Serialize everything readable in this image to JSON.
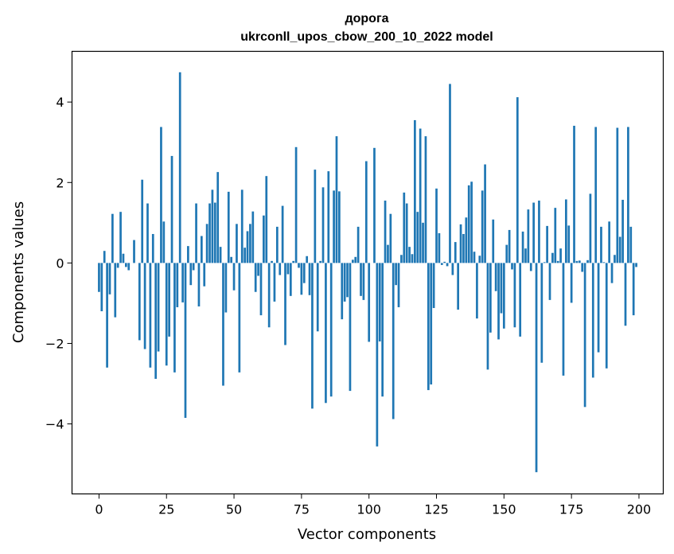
{
  "chart_data": {
    "type": "bar",
    "title": "дорога",
    "subtitle": "ukrconll_upos_cbow_200_10_2022 model",
    "xlabel": "Vector components",
    "ylabel": "Components values",
    "xlim": [
      -10,
      209
    ],
    "ylim": [
      -5.74,
      5.26
    ],
    "xticks": [
      0,
      25,
      50,
      75,
      100,
      125,
      150,
      175,
      200
    ],
    "xtick_labels": [
      "0",
      "25",
      "50",
      "75",
      "100",
      "125",
      "150",
      "175",
      "200"
    ],
    "yticks": [
      -4,
      -2,
      0,
      2,
      4
    ],
    "ytick_labels": [
      "−4",
      "−2",
      "0",
      "2",
      "4"
    ],
    "grid": false,
    "bar_color": "#1f77b4",
    "x": [
      0,
      1,
      2,
      3,
      4,
      5,
      6,
      7,
      8,
      9,
      10,
      11,
      12,
      13,
      14,
      15,
      16,
      17,
      18,
      19,
      20,
      21,
      22,
      23,
      24,
      25,
      26,
      27,
      28,
      29,
      30,
      31,
      32,
      33,
      34,
      35,
      36,
      37,
      38,
      39,
      40,
      41,
      42,
      43,
      44,
      45,
      46,
      47,
      48,
      49,
      50,
      51,
      52,
      53,
      54,
      55,
      56,
      57,
      58,
      59,
      60,
      61,
      62,
      63,
      64,
      65,
      66,
      67,
      68,
      69,
      70,
      71,
      72,
      73,
      74,
      75,
      76,
      77,
      78,
      79,
      80,
      81,
      82,
      83,
      84,
      85,
      86,
      87,
      88,
      89,
      90,
      91,
      92,
      93,
      94,
      95,
      96,
      97,
      98,
      99,
      100,
      101,
      102,
      103,
      104,
      105,
      106,
      107,
      108,
      109,
      110,
      111,
      112,
      113,
      114,
      115,
      116,
      117,
      118,
      119,
      120,
      121,
      122,
      123,
      124,
      125,
      126,
      127,
      128,
      129,
      130,
      131,
      132,
      133,
      134,
      135,
      136,
      137,
      138,
      139,
      140,
      141,
      142,
      143,
      144,
      145,
      146,
      147,
      148,
      149,
      150,
      151,
      152,
      153,
      154,
      155,
      156,
      157,
      158,
      159,
      160,
      161,
      162,
      163,
      164,
      165,
      166,
      167,
      168,
      169,
      170,
      171,
      172,
      173,
      174,
      175,
      176,
      177,
      178,
      179,
      180,
      181,
      182,
      183,
      184,
      185,
      186,
      187,
      188,
      189,
      190,
      191,
      192,
      193,
      194,
      195,
      196,
      197,
      198,
      199
    ],
    "values": [
      -0.72,
      -1.2,
      0.3,
      -2.6,
      -0.78,
      1.22,
      -1.35,
      -0.12,
      1.27,
      0.23,
      -0.1,
      -0.18,
      0,
      0.57,
      0,
      -1.92,
      2.07,
      -2.14,
      1.48,
      -2.6,
      0.72,
      -2.88,
      -2.2,
      3.38,
      1.03,
      -2.55,
      -1.83,
      2.66,
      -2.72,
      -1.1,
      4.74,
      -0.98,
      -3.85,
      0.42,
      -0.55,
      -0.18,
      1.48,
      -1.08,
      0.67,
      -0.58,
      0.97,
      1.48,
      1.82,
      1.5,
      2.26,
      0.4,
      -3.05,
      -1.23,
      1.77,
      0.15,
      -0.68,
      0.97,
      -2.72,
      1.82,
      0.38,
      0.79,
      0.97,
      1.28,
      -0.72,
      -0.32,
      -1.3,
      1.18,
      2.16,
      -1.6,
      0.05,
      -0.96,
      0.9,
      -0.3,
      1.42,
      -2.04,
      -0.28,
      -0.82,
      0.05,
      2.88,
      -0.12,
      -0.79,
      -0.5,
      0.17,
      -0.8,
      -3.62,
      2.32,
      -1.7,
      0.05,
      1.88,
      -3.48,
      2.28,
      -3.32,
      1.8,
      3.15,
      1.78,
      -1.4,
      -0.96,
      -0.85,
      -3.18,
      0.08,
      0.15,
      0.9,
      -0.82,
      -0.92,
      2.53,
      -1.96,
      0,
      2.86,
      -4.56,
      -1.95,
      -3.32,
      1.55,
      0.45,
      1.22,
      -3.88,
      -0.55,
      -1.1,
      0.2,
      1.75,
      1.48,
      0.4,
      0.22,
      3.55,
      1.27,
      3.34,
      1.0,
      3.15,
      -3.16,
      -3.02,
      -1.12,
      1.85,
      0.74,
      -0.05,
      0.03,
      -0.08,
      4.45,
      -0.3,
      0.52,
      -1.16,
      0.96,
      0.72,
      1.13,
      1.93,
      2.02,
      0.28,
      -1.38,
      0.18,
      1.8,
      2.45,
      -2.65,
      -1.73,
      1.08,
      -0.7,
      -1.9,
      -1.25,
      -1.63,
      0.45,
      0.82,
      -0.16,
      -1.6,
      4.12,
      -1.83,
      0.78,
      0.36,
      1.33,
      -0.2,
      1.5,
      -5.2,
      1.55,
      -2.48,
      0.02,
      0.92,
      -0.92,
      0.25,
      1.37,
      0.05,
      0.36,
      -2.8,
      1.58,
      0.93,
      -0.99,
      3.41,
      0.05,
      0.06,
      -0.22,
      -3.58,
      0.07,
      1.72,
      -2.85,
      3.38,
      -2.22,
      0.9,
      0.02,
      -2.62,
      1.03,
      -0.5,
      0.2,
      3.36,
      0.65,
      1.57,
      -1.56,
      3.38,
      0.9,
      -1.3,
      -0.1
    ]
  }
}
